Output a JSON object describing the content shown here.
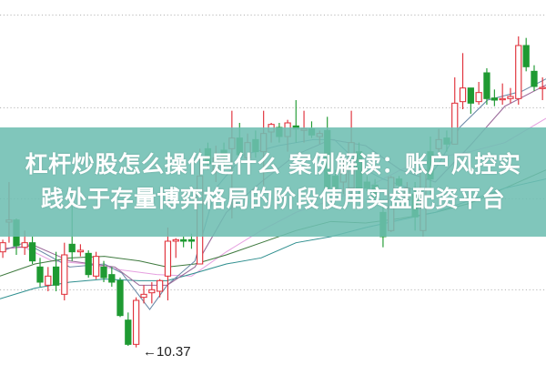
{
  "article": {
    "title_line1": "杠杆炒股怎么操作是什么 案例解读：账户风控实",
    "title_line2": "践处于存量博弈格局的阶段使用实盘配资平台"
  },
  "chart": {
    "type": "candlestick",
    "low_marker_label": "←10.37",
    "colors": {
      "up": "#e0303a",
      "down": "#1f9a32",
      "banner": "#6ebeb2",
      "grid": "#b0b0b0"
    },
    "grid": "horizontal-dotted"
  }
}
